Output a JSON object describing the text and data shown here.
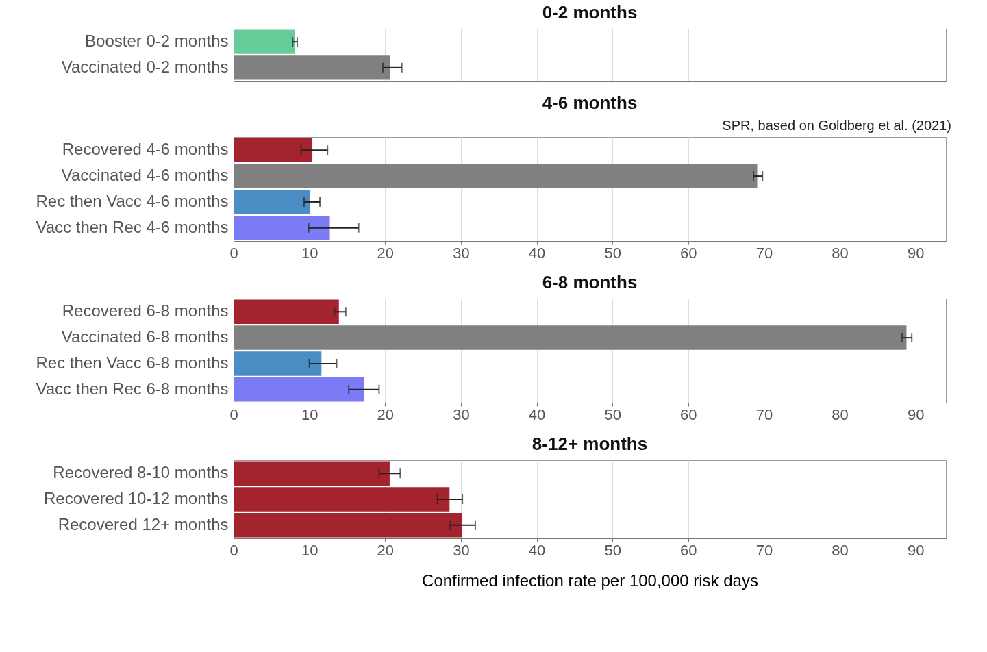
{
  "chart_data": [
    {
      "type": "bar",
      "orientation": "horizontal",
      "title": "0-2 months",
      "categories": [
        "Booster 0-2 months",
        "Vaccinated 0-2 months"
      ],
      "values": [
        8.1,
        20.7
      ],
      "colors": [
        "#66cc99",
        "#808080"
      ],
      "errors": [
        [
          7.8,
          8.4
        ],
        [
          19.7,
          22.2
        ]
      ],
      "xlim": [
        0,
        94
      ],
      "xticks": [
        0,
        10,
        20,
        30,
        40,
        50,
        60,
        70,
        80,
        90
      ],
      "grid": "x",
      "tick_labels": "y"
    },
    {
      "type": "bar",
      "orientation": "horizontal",
      "title": "4-6 months",
      "annotations": [
        "SPR, based on Goldberg et al. (2021)"
      ],
      "categories": [
        "Recovered 4-6 months",
        "Vaccinated 4-6 months",
        "Rec then Vacc 4-6 months",
        "Vacc then Rec 4-6 months"
      ],
      "values": [
        10.4,
        69.1,
        10.1,
        12.7
      ],
      "colors": [
        "#a3232e",
        "#808080",
        "#4a8cc4",
        "#7b7bf5"
      ],
      "errors": [
        [
          8.9,
          12.4
        ],
        [
          68.6,
          69.8
        ],
        [
          9.3,
          11.4
        ],
        [
          9.9,
          16.5
        ]
      ],
      "xlim": [
        0,
        94
      ],
      "xticks": [
        0,
        10,
        20,
        30,
        40,
        50,
        60,
        70,
        80,
        90
      ],
      "grid": "x"
    },
    {
      "type": "bar",
      "orientation": "horizontal",
      "title": "6-8 months",
      "categories": [
        "Recovered 6-8 months",
        "Vaccinated 6-8 months",
        "Rec then Vacc 6-8 months",
        "Vacc then Rec 6-8 months"
      ],
      "values": [
        13.9,
        88.8,
        11.6,
        17.2
      ],
      "colors": [
        "#a3232e",
        "#808080",
        "#4a8cc4",
        "#7b7bf5"
      ],
      "errors": [
        [
          13.3,
          14.8
        ],
        [
          88.2,
          89.5
        ],
        [
          10.0,
          13.6
        ],
        [
          15.2,
          19.2
        ]
      ],
      "xlim": [
        0,
        94
      ],
      "xticks": [
        0,
        10,
        20,
        30,
        40,
        50,
        60,
        70,
        80,
        90
      ],
      "grid": "x"
    },
    {
      "type": "bar",
      "orientation": "horizontal",
      "title": "8-12+ months",
      "xlabel": "Confirmed infection rate per 100,000 risk days",
      "categories": [
        "Recovered 8-10 months",
        "Recovered 10-12 months",
        "Recovered 12+ months"
      ],
      "values": [
        20.6,
        28.5,
        30.1
      ],
      "colors": [
        "#a3232e",
        "#a3232e",
        "#a3232e"
      ],
      "errors": [
        [
          19.2,
          22.0
        ],
        [
          26.9,
          30.2
        ],
        [
          28.6,
          31.9
        ]
      ],
      "xlim": [
        0,
        94
      ],
      "xticks": [
        0,
        10,
        20,
        30,
        40,
        50,
        60,
        70,
        80,
        90
      ],
      "grid": "x"
    }
  ]
}
